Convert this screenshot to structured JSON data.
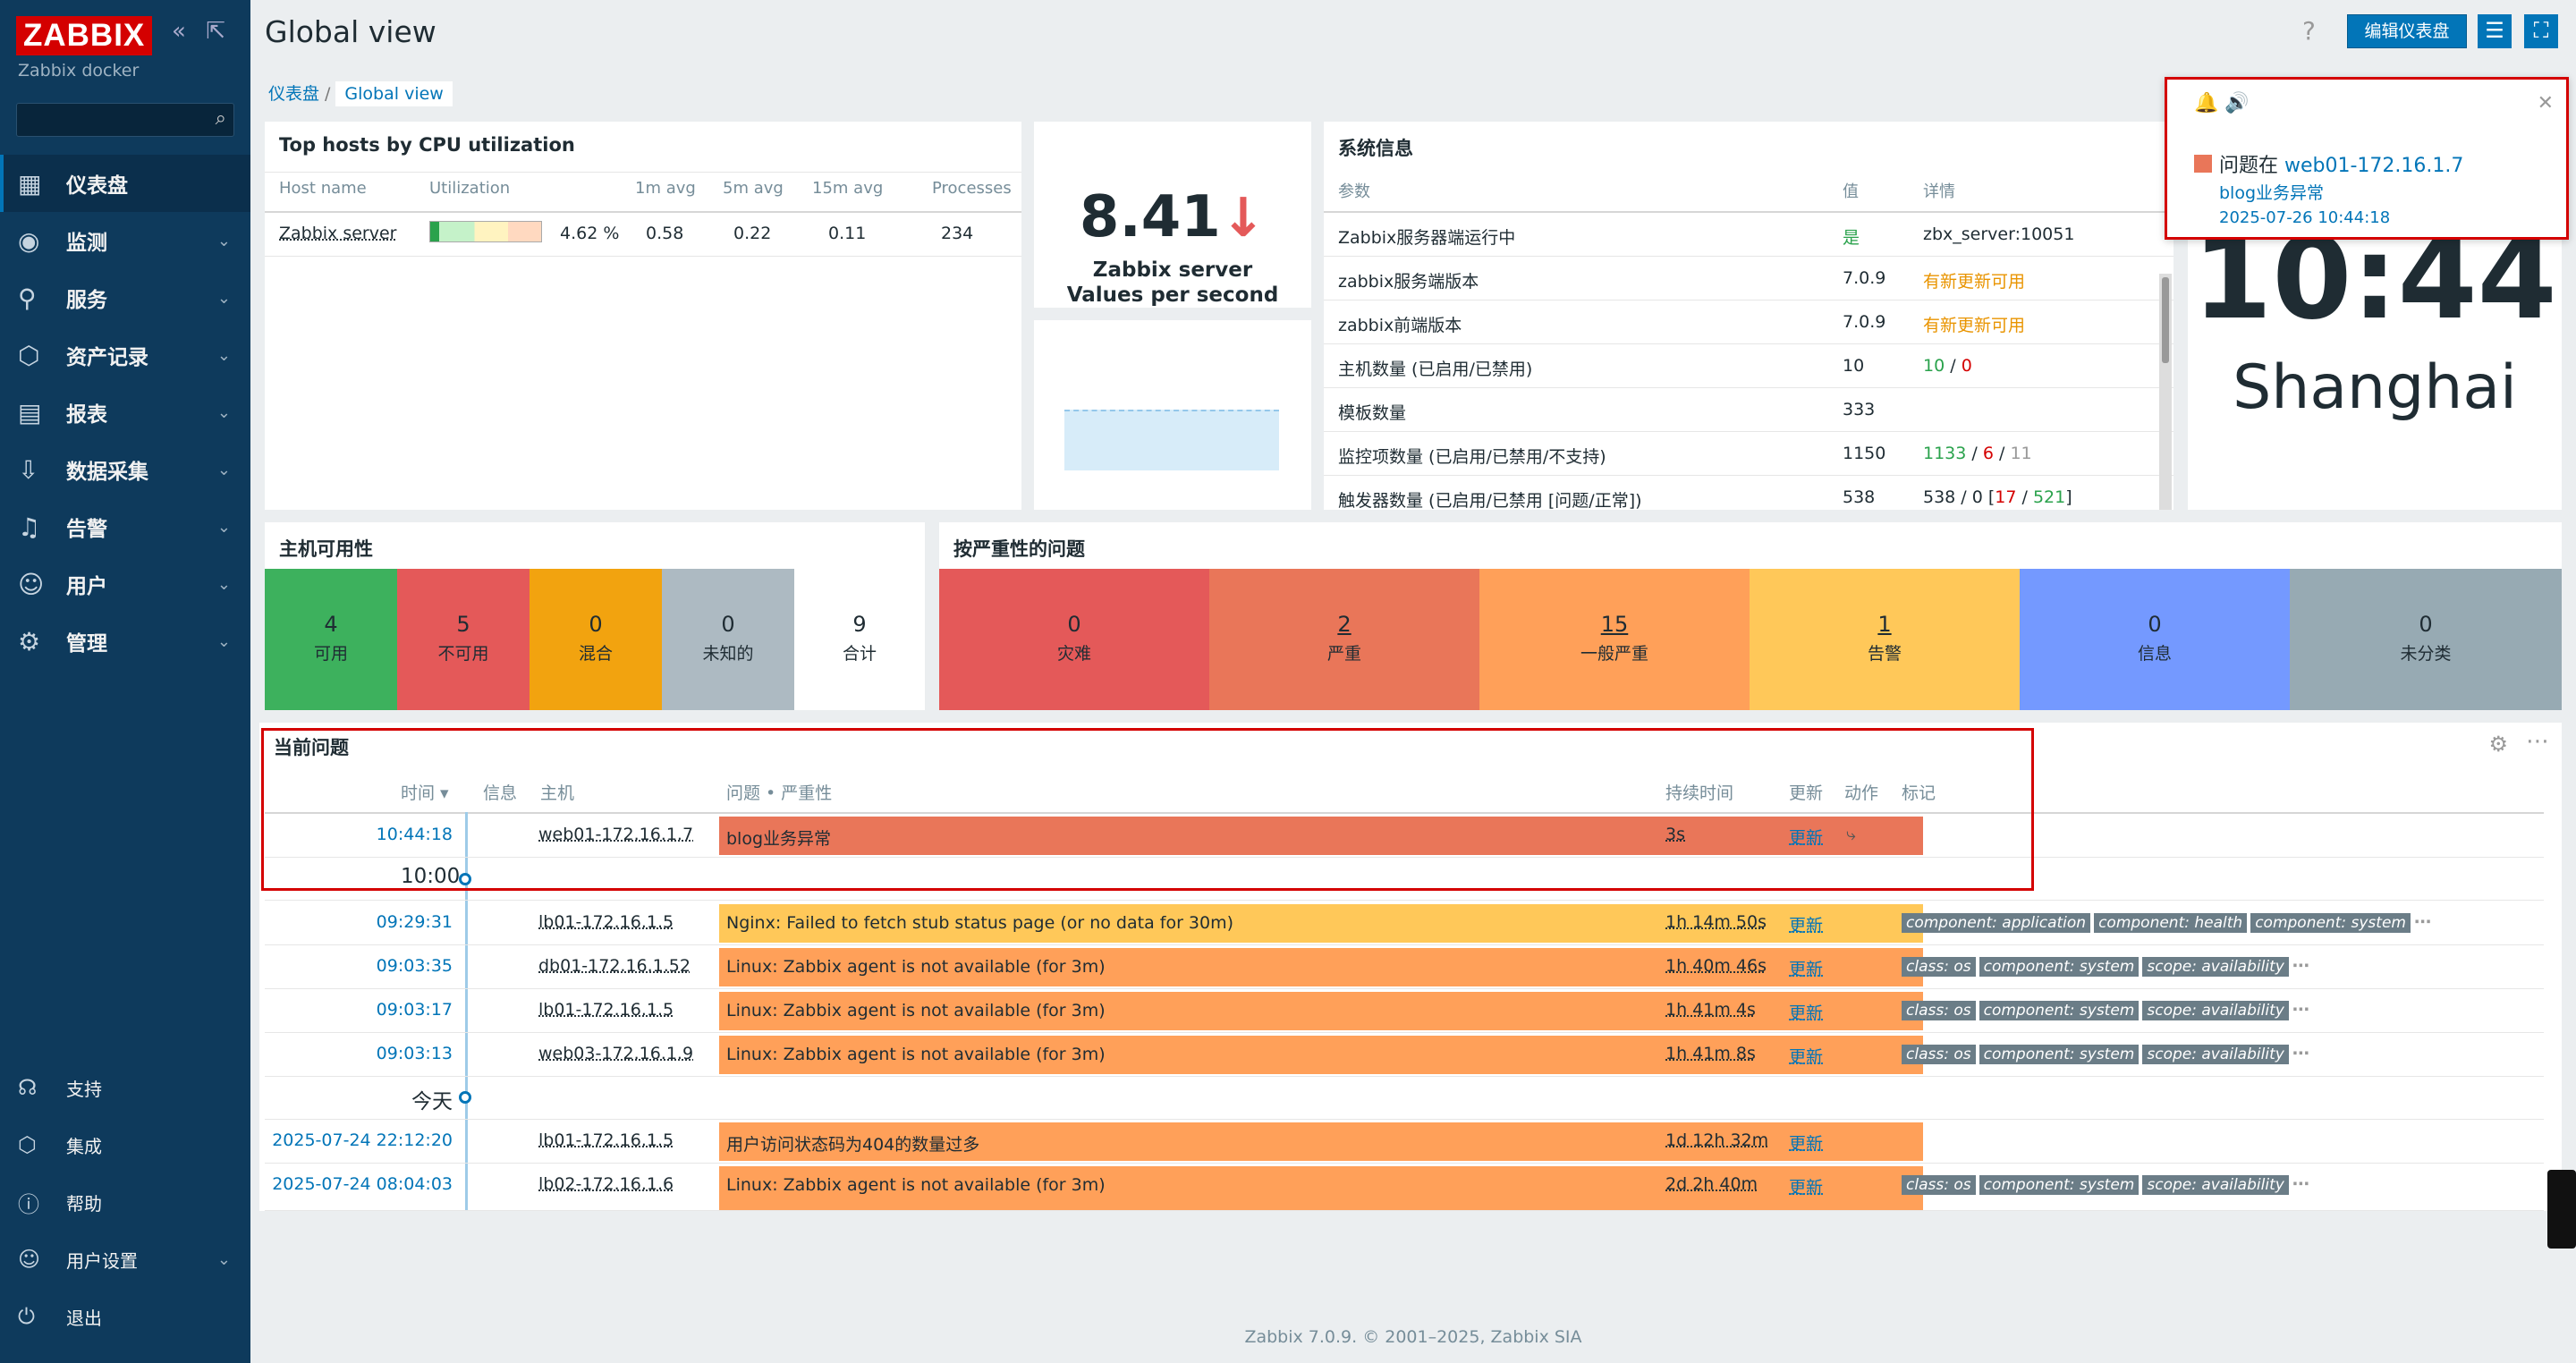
{
  "app": {
    "logo": "ZABBIX",
    "instance": "Zabbix docker",
    "page_title": "Global view"
  },
  "header": {
    "help": "?",
    "edit_button": "编辑仪表盘"
  },
  "breadcrumb": {
    "root": "仪表盘",
    "sep": "/",
    "current": "Global view"
  },
  "sidebar": {
    "items": [
      {
        "label": "仪表盘",
        "icon": "dashboard-icon"
      },
      {
        "label": "监测",
        "icon": "monitoring-icon"
      },
      {
        "label": "服务",
        "icon": "services-icon"
      },
      {
        "label": "资产记录",
        "icon": "inventory-icon"
      },
      {
        "label": "报表",
        "icon": "reports-icon"
      },
      {
        "label": "数据采集",
        "icon": "data-collection-icon"
      },
      {
        "label": "告警",
        "icon": "alerts-icon"
      },
      {
        "label": "用户",
        "icon": "users-icon"
      },
      {
        "label": "管理",
        "icon": "administration-icon"
      }
    ],
    "bottom": [
      {
        "label": "支持"
      },
      {
        "label": "集成"
      },
      {
        "label": "帮助"
      },
      {
        "label": "用户设置"
      },
      {
        "label": "退出"
      }
    ]
  },
  "cpu": {
    "title": "Top hosts by CPU utilization",
    "headers": [
      "Host name",
      "Utilization",
      "1m avg",
      "5m avg",
      "15m avg",
      "Processes"
    ],
    "row": {
      "host": "Zabbix server",
      "util_pct": "4.62 %",
      "m1": "0.58",
      "m5": "0.22",
      "m15": "0.11",
      "proc": "234"
    }
  },
  "vps": {
    "value": "8.41",
    "arrow": "↓",
    "line1": "Zabbix server",
    "line2": "Values per second"
  },
  "sysinfo": {
    "title": "系统信息",
    "headers": [
      "参数",
      "值",
      "详情"
    ],
    "rows": [
      {
        "p": "Zabbix服务器端运行中",
        "v": "是",
        "d": "zbx_server:10051"
      },
      {
        "p": "zabbix服务端版本",
        "v": "7.0.9",
        "d": "有新更新可用"
      },
      {
        "p": "zabbix前端版本",
        "v": "7.0.9",
        "d": "有新更新可用"
      },
      {
        "p": "主机数量 (已启用/已禁用)",
        "v": "10",
        "d1": "10",
        "d2": "/",
        "d3": "0"
      },
      {
        "p": "模板数量",
        "v": "333",
        "d": ""
      },
      {
        "p": "监控项数量 (已启用/已禁用/不支持)",
        "v": "1150",
        "d1": "1133",
        "d2": "/",
        "d3": "6",
        "d4": "/",
        "d5": "11"
      },
      {
        "p": "触发器数量 (已启用/已禁用 [问题/正常])",
        "v": "538",
        "d1": "538 / 0 [",
        "d2": "17",
        "d3": " / ",
        "d4": "521",
        "d5": "]"
      }
    ]
  },
  "clock": {
    "time": "10:44",
    "city": "Shanghai"
  },
  "popup": {
    "prefix": "问题在 ",
    "host": "web01-172.16.1.7",
    "problem": "blog业务异常",
    "time": "2025-07-26 10:44:18"
  },
  "availability": {
    "title": "主机可用性",
    "cells": [
      {
        "n": "4",
        "l": "可用",
        "color": "#3db15d"
      },
      {
        "n": "5",
        "l": "不可用",
        "color": "#e45959"
      },
      {
        "n": "0",
        "l": "混合",
        "color": "#f2a30f"
      },
      {
        "n": "0",
        "l": "未知的",
        "color": "#adbac2"
      },
      {
        "n": "9",
        "l": "合计",
        "color": "#ffffff"
      }
    ]
  },
  "severity": {
    "title": "按严重性的问题",
    "cells": [
      {
        "n": "0",
        "l": "灾难",
        "color": "#e45959"
      },
      {
        "n": "2",
        "l": "严重",
        "color": "#e97659"
      },
      {
        "n": "15",
        "l": "一般严重",
        "color": "#ffa059"
      },
      {
        "n": "1",
        "l": "告警",
        "color": "#ffc859"
      },
      {
        "n": "0",
        "l": "信息",
        "color": "#7499ff"
      },
      {
        "n": "0",
        "l": "未分类",
        "color": "#97aab3"
      }
    ]
  },
  "problems": {
    "title": "当前问题",
    "headers": {
      "time": "时间 ▾",
      "info": "信息",
      "host": "主机",
      "problem": "问题 • 严重性",
      "duration": "持续时间",
      "update": "更新",
      "actions": "动作",
      "tags": "标记"
    },
    "tl_1000": "10:00",
    "tl_today": "今天",
    "rows": [
      {
        "time": "10:44:18",
        "host": "web01-172.16.1.7",
        "problem": "blog业务异常",
        "dur": "3s",
        "upd": "更新",
        "color": "#e97659",
        "tags": []
      },
      {
        "time": "09:29:31",
        "host": "lb01-172.16.1.5",
        "problem": "Nginx: Failed to fetch stub status page (or no data for 30m)",
        "dur": "1h 14m 50s",
        "upd": "更新",
        "color": "#ffc859",
        "tags": [
          "component: application",
          "component: health",
          "component: system"
        ]
      },
      {
        "time": "09:03:35",
        "host": "db01-172.16.1.52",
        "problem": "Linux: Zabbix agent is not available (for 3m)",
        "dur": "1h 40m 46s",
        "upd": "更新",
        "color": "#ffa059",
        "tags": [
          "class: os",
          "component: system",
          "scope: availability"
        ]
      },
      {
        "time": "09:03:17",
        "host": "lb01-172.16.1.5",
        "problem": "Linux: Zabbix agent is not available (for 3m)",
        "dur": "1h 41m 4s",
        "upd": "更新",
        "color": "#ffa059",
        "tags": [
          "class: os",
          "component: system",
          "scope: availability"
        ]
      },
      {
        "time": "09:03:13",
        "host": "web03-172.16.1.9",
        "problem": "Linux: Zabbix agent is not available (for 3m)",
        "dur": "1h 41m 8s",
        "upd": "更新",
        "color": "#ffa059",
        "tags": [
          "class: os",
          "component: system",
          "scope: availability"
        ]
      },
      {
        "time": "2025-07-24 22:12:20",
        "host": "lb01-172.16.1.5",
        "problem": "用户访问状态码为404的数量过多",
        "dur": "1d 12h 32m",
        "upd": "更新",
        "color": "#ffa059",
        "tags": []
      },
      {
        "time": "2025-07-24 08:04:03",
        "host": "lb02-172.16.1.6",
        "problem": "Linux: Zabbix agent is not available (for 3m)",
        "dur": "2d 2h 40m",
        "upd": "更新",
        "color": "#ffa059",
        "tags": [
          "class: os",
          "component: system",
          "scope: availability"
        ]
      }
    ]
  },
  "footer": "Zabbix 7.0.9. © 2001–2025, Zabbix SIA"
}
